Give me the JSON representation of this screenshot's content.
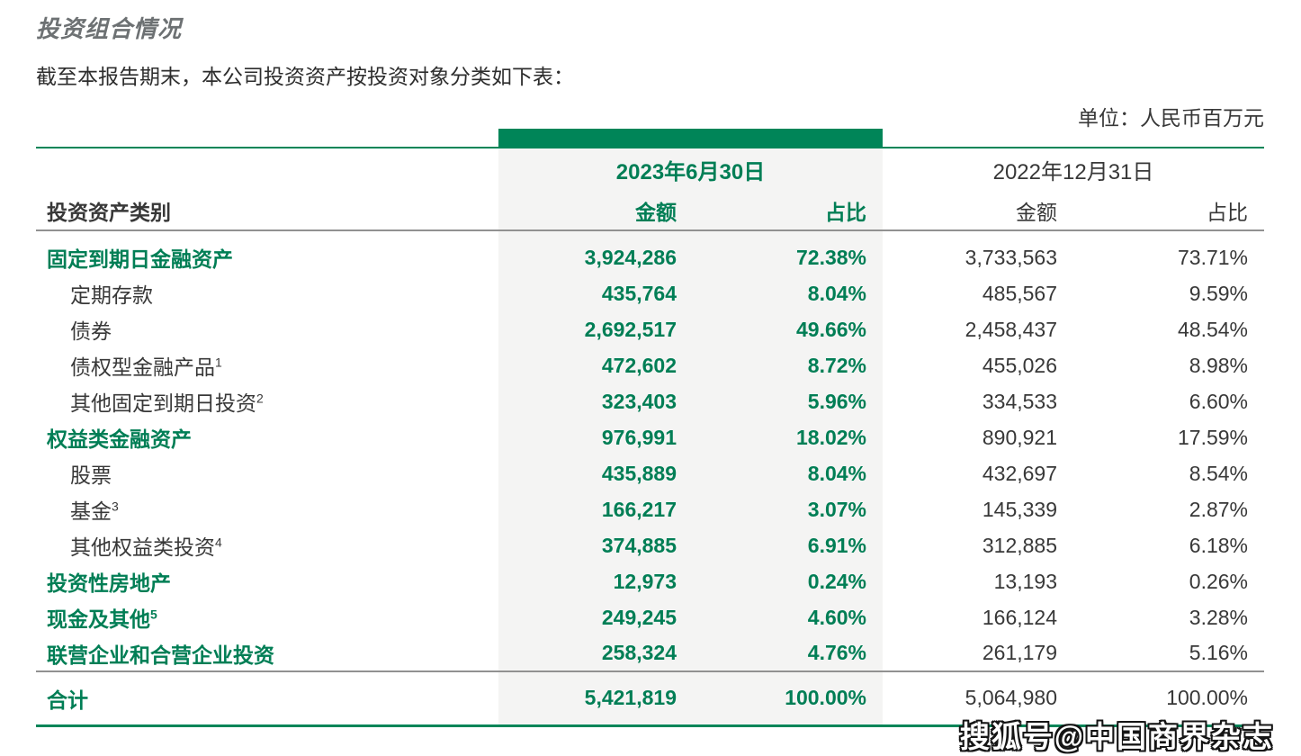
{
  "page": {
    "title": "投资组合情况",
    "subtitle": "截至本报告期末，本公司投资资产按投资对象分类如下表：",
    "unit_note": "单位：人民币百万元"
  },
  "table": {
    "date_2023": "2023年6月30日",
    "date_2022": "2022年12月31日",
    "header_category": "投资资产类别",
    "header_amount": "金额",
    "header_ratio": "占比",
    "rows": [
      {
        "label": "固定到期日金融资产",
        "sup": "",
        "level": 0,
        "amount_2023": "3,924,286",
        "ratio_2023": "72.38%",
        "amount_2022": "3,733,563",
        "ratio_2022": "73.71%"
      },
      {
        "label": "定期存款",
        "sup": "",
        "level": 1,
        "amount_2023": "435,764",
        "ratio_2023": "8.04%",
        "amount_2022": "485,567",
        "ratio_2022": "9.59%"
      },
      {
        "label": "债券",
        "sup": "",
        "level": 1,
        "amount_2023": "2,692,517",
        "ratio_2023": "49.66%",
        "amount_2022": "2,458,437",
        "ratio_2022": "48.54%"
      },
      {
        "label": "债权型金融产品",
        "sup": "1",
        "level": 1,
        "amount_2023": "472,602",
        "ratio_2023": "8.72%",
        "amount_2022": "455,026",
        "ratio_2022": "8.98%"
      },
      {
        "label": "其他固定到期日投资",
        "sup": "2",
        "level": 1,
        "amount_2023": "323,403",
        "ratio_2023": "5.96%",
        "amount_2022": "334,533",
        "ratio_2022": "6.60%"
      },
      {
        "label": "权益类金融资产",
        "sup": "",
        "level": 0,
        "amount_2023": "976,991",
        "ratio_2023": "18.02%",
        "amount_2022": "890,921",
        "ratio_2022": "17.59%"
      },
      {
        "label": "股票",
        "sup": "",
        "level": 1,
        "amount_2023": "435,889",
        "ratio_2023": "8.04%",
        "amount_2022": "432,697",
        "ratio_2022": "8.54%"
      },
      {
        "label": "基金",
        "sup": "3",
        "level": 1,
        "amount_2023": "166,217",
        "ratio_2023": "3.07%",
        "amount_2022": "145,339",
        "ratio_2022": "2.87%"
      },
      {
        "label": "其他权益类投资",
        "sup": "4",
        "level": 1,
        "amount_2023": "374,885",
        "ratio_2023": "6.91%",
        "amount_2022": "312,885",
        "ratio_2022": "6.18%"
      },
      {
        "label": "投资性房地产",
        "sup": "",
        "level": 0,
        "amount_2023": "12,973",
        "ratio_2023": "0.24%",
        "amount_2022": "13,193",
        "ratio_2022": "0.26%"
      },
      {
        "label": "现金及其他",
        "sup": "5",
        "level": 0,
        "amount_2023": "249,245",
        "ratio_2023": "4.60%",
        "amount_2022": "166,124",
        "ratio_2022": "3.28%"
      },
      {
        "label": "联营企业和合营企业投资",
        "sup": "",
        "level": 0,
        "amount_2023": "258,324",
        "ratio_2023": "4.76%",
        "amount_2022": "261,179",
        "ratio_2022": "5.16%"
      }
    ],
    "total": {
      "label": "合计",
      "amount_2023": "5,421,819",
      "ratio_2023": "100.00%",
      "amount_2022": "5,064,980",
      "ratio_2022": "100.00%"
    }
  },
  "watermark": "搜狐号@中国商界杂志",
  "colors": {
    "accent_green": "#008558",
    "text_green": "#007E55",
    "column_bg": "#F4F4F3",
    "title_gray": "#6D7173",
    "text_dark": "#383838",
    "divider_gray": "#919191"
  }
}
